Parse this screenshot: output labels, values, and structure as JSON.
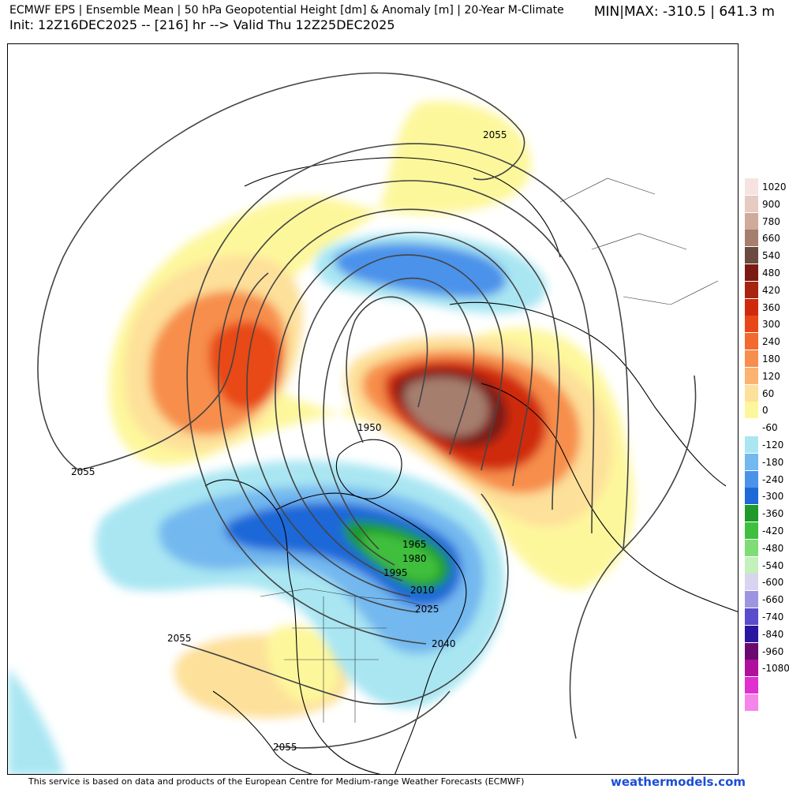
{
  "header": {
    "line1": "ECMWF EPS | Ensemble Mean | 50 hPa Geopotential Height [dm] & Anomaly [m] | 20-Year M-Climate",
    "line2": "Init: 12Z16DEC2025 -- [216] hr --> Valid Thu 12Z25DEC2025",
    "minmax": "MIN|MAX: -310.5 | 641.3 m"
  },
  "contour_labels": [
    "2055",
    "2055",
    "2055",
    "2055",
    "1950",
    "1965",
    "1980",
    "1995",
    "2010",
    "2025",
    "2040"
  ],
  "colorbar": {
    "entries": [
      {
        "label": "1020",
        "color": "#f6e3df"
      },
      {
        "label": "900",
        "color": "#e6cbc2"
      },
      {
        "label": "780",
        "color": "#d0aa9c"
      },
      {
        "label": "660",
        "color": "#a67e6e"
      },
      {
        "label": "540",
        "color": "#6b4a40"
      },
      {
        "label": "480",
        "color": "#7a1a12"
      },
      {
        "label": "420",
        "color": "#a82410"
      },
      {
        "label": "360",
        "color": "#d02a0c"
      },
      {
        "label": "300",
        "color": "#e84818"
      },
      {
        "label": "240",
        "color": "#f26a30"
      },
      {
        "label": "180",
        "color": "#f78e4c"
      },
      {
        "label": "120",
        "color": "#fbb372"
      },
      {
        "label": "60",
        "color": "#fde09a"
      },
      {
        "label": "0",
        "color": "#fdf79c"
      },
      {
        "label": "-60",
        "color": "#ffffff"
      },
      {
        "label": "-120",
        "color": "#a9e6f2"
      },
      {
        "label": "-180",
        "color": "#73b8ef"
      },
      {
        "label": "-240",
        "color": "#4b92ea"
      },
      {
        "label": "-300",
        "color": "#1f68d8"
      },
      {
        "label": "-360",
        "color": "#1e9a2a"
      },
      {
        "label": "-420",
        "color": "#3fbf3e"
      },
      {
        "label": "-480",
        "color": "#7fdc76"
      },
      {
        "label": "-540",
        "color": "#c4f0bd"
      },
      {
        "label": "-600",
        "color": "#d8d4f0"
      },
      {
        "label": "-660",
        "color": "#9e95e0"
      },
      {
        "label": "-740",
        "color": "#5a4ccc"
      },
      {
        "label": "-840",
        "color": "#2a16a0"
      },
      {
        "label": "-960",
        "color": "#6a0a70"
      },
      {
        "label": "-1080",
        "color": "#b0109c"
      },
      {
        "label": "",
        "color": "#e030d0"
      },
      {
        "label": "",
        "color": "#f585e8"
      }
    ]
  },
  "footer": {
    "credit": "This service is based on data and products of the European Centre for Medium-range Weather Forecasts (ECMWF)",
    "brand": "weathermodels.com"
  }
}
